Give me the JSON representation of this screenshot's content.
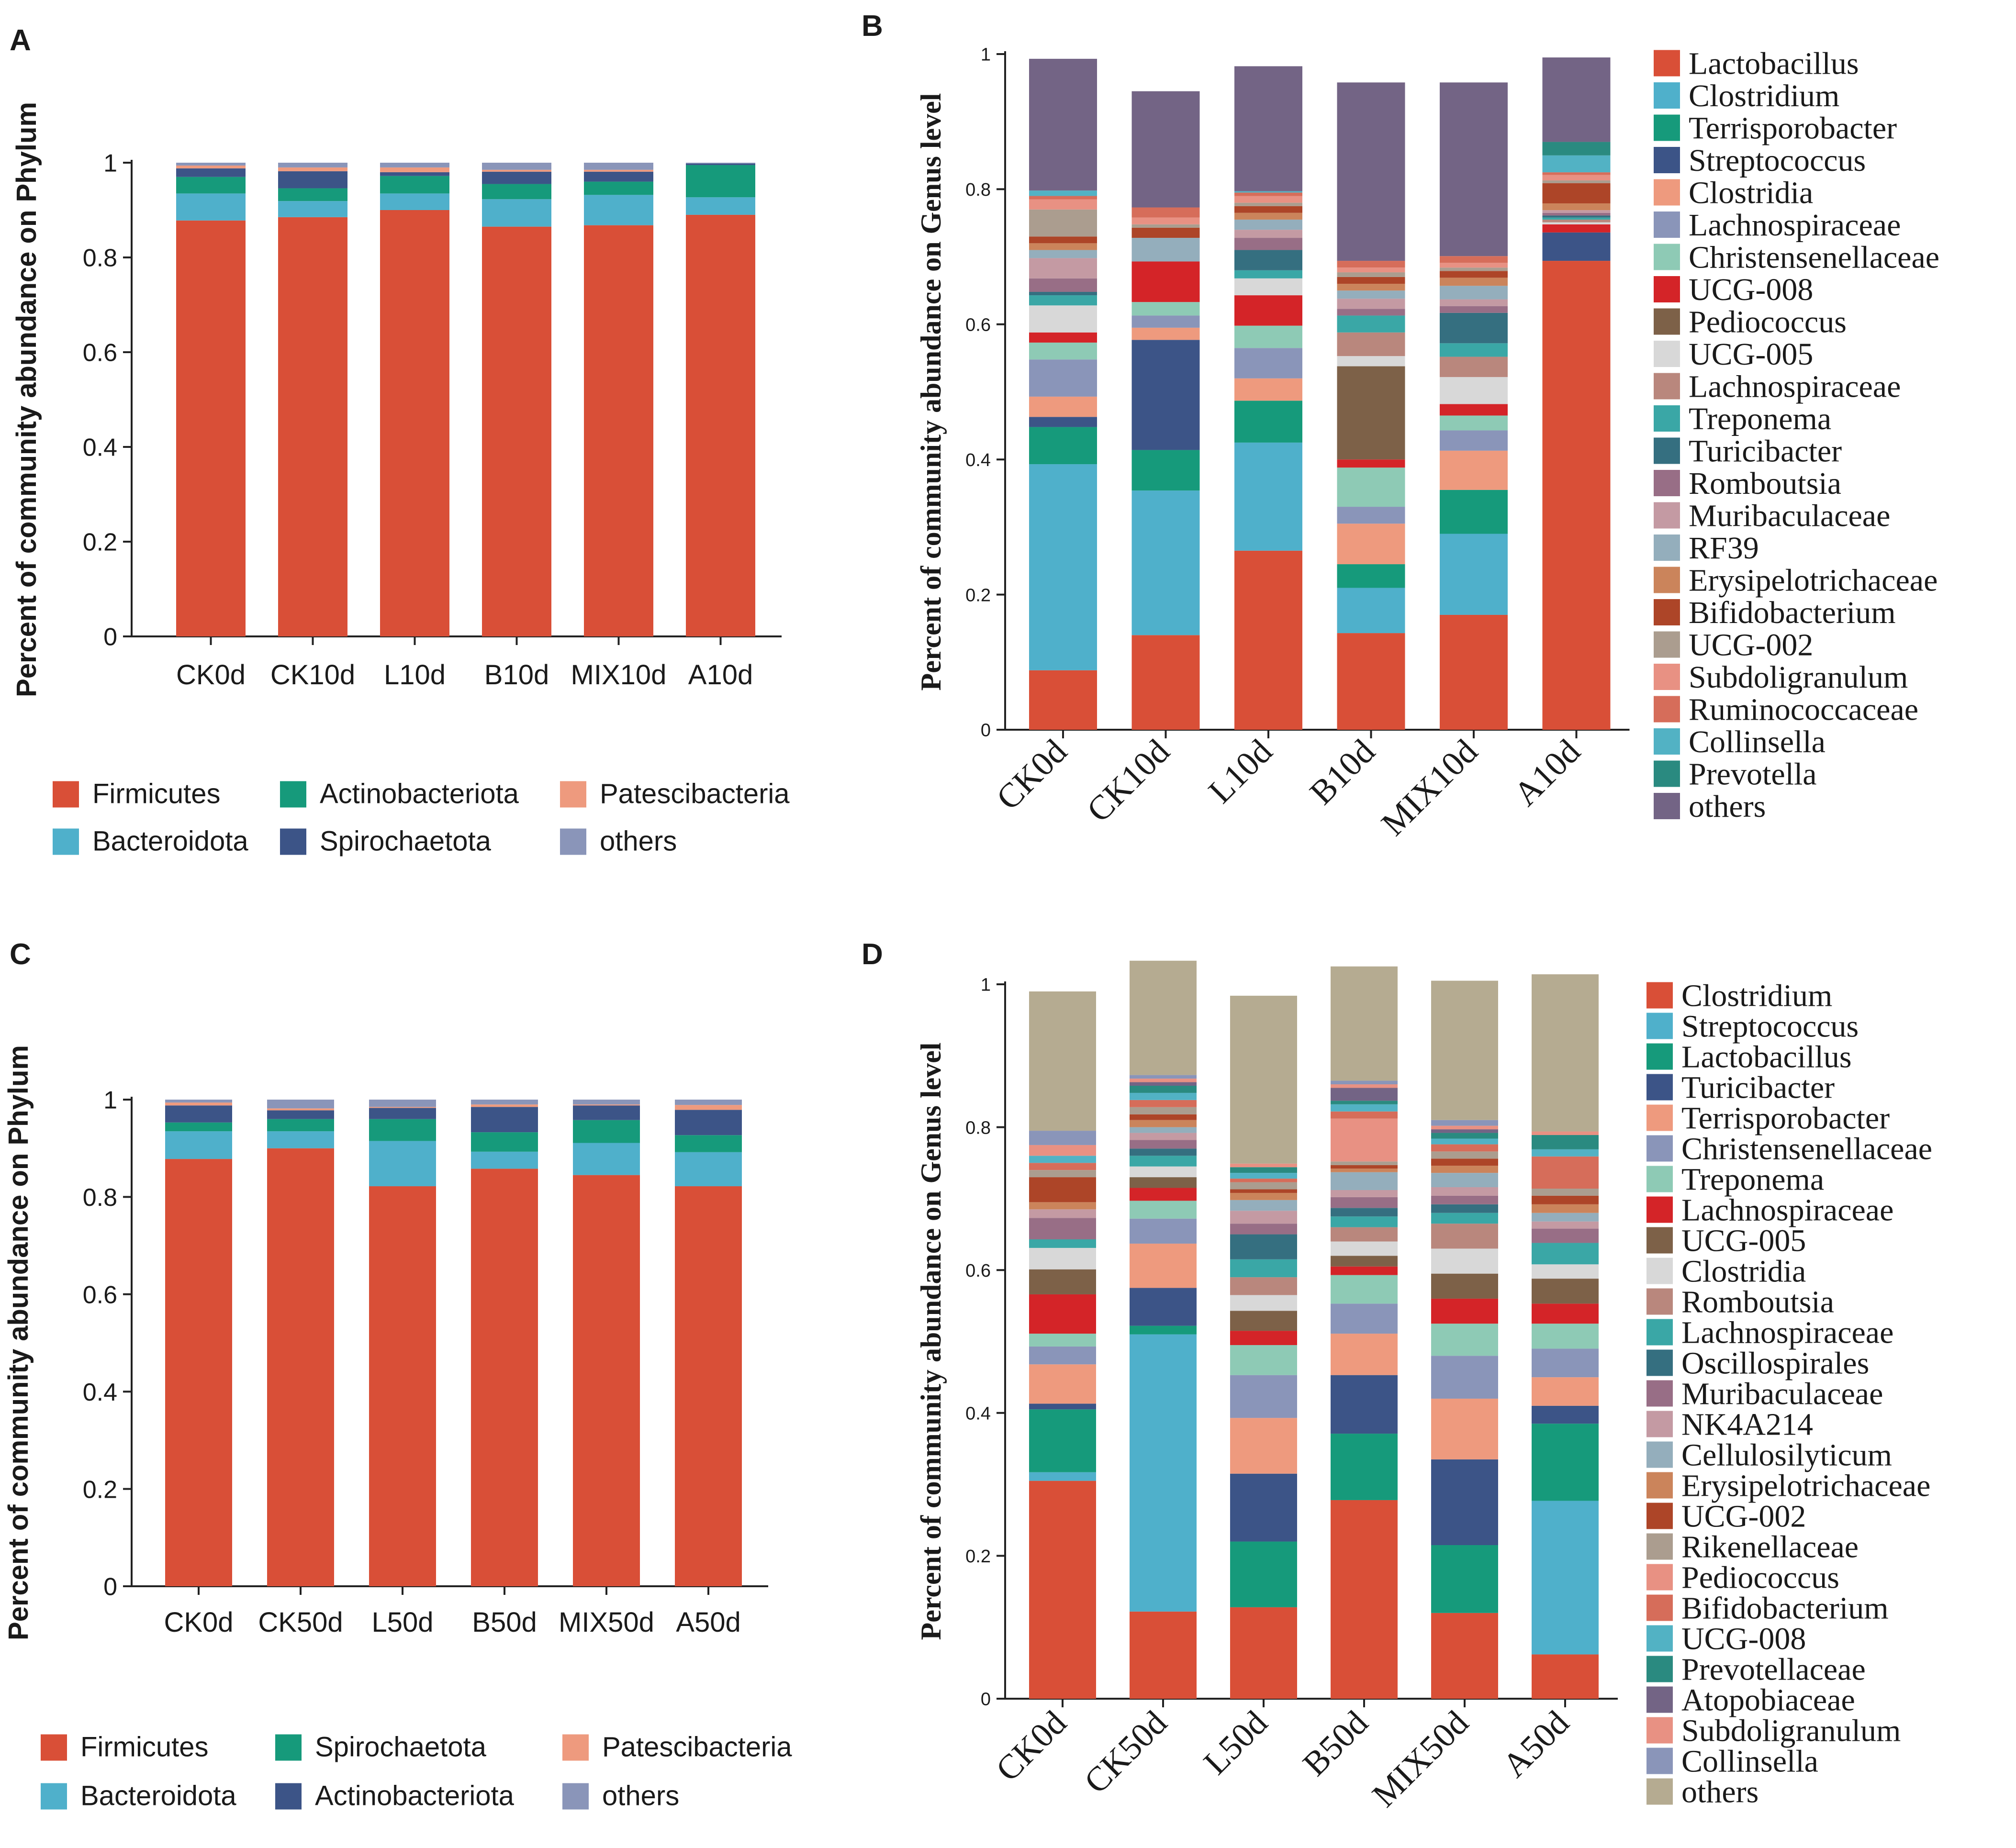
{
  "chart_data": [
    {
      "panel": "A",
      "type": "bar",
      "stacked": true,
      "level": "Phylum",
      "ylabel": "Percent of community abundance on Phylum",
      "xlabel": "",
      "ylim": [
        0,
        1
      ],
      "yticks": [
        "0",
        "0.2",
        "0.4",
        "0.6",
        "0.8",
        "1"
      ],
      "categories": [
        "CK0d",
        "CK10d",
        "L10d",
        "B10d",
        "MIX10d",
        "A10d"
      ],
      "legend_placement": "bottom",
      "series": [
        {
          "name": "Firmicutes",
          "color": "#d94f37",
          "values": [
            0.878,
            0.885,
            0.9,
            0.865,
            0.868,
            0.89
          ]
        },
        {
          "name": "Bacteroidota",
          "color": "#4fb0cb",
          "values": [
            0.057,
            0.034,
            0.035,
            0.058,
            0.064,
            0.037
          ]
        },
        {
          "name": "Actinobacteriota",
          "color": "#169a7b",
          "values": [
            0.035,
            0.027,
            0.037,
            0.032,
            0.028,
            0.068
          ]
        },
        {
          "name": "Spirochaetota",
          "color": "#3c5487",
          "values": [
            0.018,
            0.036,
            0.008,
            0.026,
            0.021,
            0.003
          ]
        },
        {
          "name": "Patescibacteria",
          "color": "#ee9a7e",
          "values": [
            0.006,
            0.008,
            0.01,
            0.004,
            0.004,
            0.0
          ]
        },
        {
          "name": "others",
          "color": "#8a95b9",
          "values": [
            0.006,
            0.01,
            0.01,
            0.015,
            0.015,
            0.002
          ]
        }
      ]
    },
    {
      "panel": "B",
      "type": "bar",
      "stacked": true,
      "level": "Genus",
      "ylabel": "Percent of community abundance on Genus level",
      "xlabel": "",
      "ylim": [
        0,
        1
      ],
      "yticks": [
        "0",
        "0.2",
        "0.4",
        "0.6",
        "0.8",
        "1"
      ],
      "categories": [
        "CK0d",
        "CK10d",
        "L10d",
        "B10d",
        "MIX10d",
        "A10d"
      ],
      "legend_placement": "right",
      "series": [
        {
          "name": "Lactobacillus",
          "color": "#d94f37",
          "values": [
            0.088,
            0.14,
            0.265,
            0.143,
            0.17,
            0.694
          ]
        },
        {
          "name": "Clostridium",
          "color": "#4fb0cb",
          "values": [
            0.305,
            0.214,
            0.16,
            0.067,
            0.12,
            0.0
          ]
        },
        {
          "name": "Terrisporobacter",
          "color": "#169a7b",
          "values": [
            0.055,
            0.06,
            0.062,
            0.035,
            0.065,
            0.0
          ]
        },
        {
          "name": "Streptococcus",
          "color": "#3c5487",
          "values": [
            0.015,
            0.163,
            0.0,
            0.0,
            0.0,
            0.042
          ]
        },
        {
          "name": "Clostridia",
          "color": "#ee9a7e",
          "values": [
            0.03,
            0.018,
            0.033,
            0.06,
            0.058,
            0.0
          ]
        },
        {
          "name": "Lachnospiraceae",
          "color": "#8a95b9",
          "values": [
            0.055,
            0.018,
            0.045,
            0.025,
            0.03,
            0.0
          ]
        },
        {
          "name": "Christensenellaceae",
          "color": "#8ecab5",
          "values": [
            0.025,
            0.02,
            0.033,
            0.058,
            0.022,
            0.0
          ]
        },
        {
          "name": "UCG-008",
          "color": "#d42428",
          "values": [
            0.015,
            0.06,
            0.045,
            0.012,
            0.017,
            0.012
          ]
        },
        {
          "name": "Pediococcus",
          "color": "#7d6148",
          "values": [
            0.0,
            0.0,
            0.0,
            0.138,
            0.0,
            0.0
          ]
        },
        {
          "name": "UCG-005",
          "color": "#d8d8d8",
          "values": [
            0.04,
            0.0,
            0.025,
            0.015,
            0.04,
            0.003
          ]
        },
        {
          "name": "Lachnospiraceae",
          "color": "#b9877d",
          "values": [
            0.0,
            0.0,
            0.0,
            0.035,
            0.03,
            0.004
          ]
        },
        {
          "name": "Treponema",
          "color": "#3aa7a6",
          "values": [
            0.015,
            0.0,
            0.012,
            0.025,
            0.02,
            0.003
          ]
        },
        {
          "name": "Turicibacter",
          "color": "#356f80",
          "values": [
            0.005,
            0.0,
            0.03,
            0.0,
            0.045,
            0.003
          ]
        },
        {
          "name": "Romboutsia",
          "color": "#986e86",
          "values": [
            0.02,
            0.0,
            0.018,
            0.01,
            0.01,
            0.004
          ]
        },
        {
          "name": "Muribaculaceae",
          "color": "#c49aa3",
          "values": [
            0.03,
            0.0,
            0.012,
            0.015,
            0.01,
            0.004
          ]
        },
        {
          "name": "RF39",
          "color": "#94aebc",
          "values": [
            0.012,
            0.035,
            0.015,
            0.012,
            0.02,
            0.0
          ]
        },
        {
          "name": "Erysipelotrichaceae",
          "color": "#cb845b",
          "values": [
            0.01,
            0.0,
            0.01,
            0.01,
            0.012,
            0.01
          ]
        },
        {
          "name": "Bifidobacterium",
          "color": "#ad4528",
          "values": [
            0.01,
            0.015,
            0.01,
            0.01,
            0.01,
            0.03
          ]
        },
        {
          "name": "UCG-002",
          "color": "#ab9d8f",
          "values": [
            0.04,
            0.005,
            0.005,
            0.007,
            0.005,
            0.004
          ]
        },
        {
          "name": "Subdoligranulum",
          "color": "#e89183",
          "values": [
            0.015,
            0.01,
            0.01,
            0.007,
            0.007,
            0.008
          ]
        },
        {
          "name": "Ruminococcaceae",
          "color": "#d66d5a",
          "values": [
            0.005,
            0.015,
            0.005,
            0.01,
            0.01,
            0.004
          ]
        },
        {
          "name": "Collinsella",
          "color": "#52b2c4",
          "values": [
            0.008,
            0.0,
            0.002,
            0.0,
            0.0,
            0.025
          ]
        },
        {
          "name": "Prevotella",
          "color": "#2a8a80",
          "values": [
            0.0,
            0.0,
            0.0,
            0.0,
            0.0,
            0.02
          ]
        },
        {
          "name": "others",
          "color": "#736485",
          "values": [
            0.195,
            0.172,
            0.185,
            0.264,
            0.257,
            0.125
          ]
        }
      ]
    },
    {
      "panel": "C",
      "type": "bar",
      "stacked": true,
      "level": "Phylum",
      "ylabel": "Percent of community abundance on Phylum",
      "xlabel": "",
      "ylim": [
        0,
        1
      ],
      "yticks": [
        "0",
        "0.2",
        "0.4",
        "0.6",
        "0.8",
        "1"
      ],
      "categories": [
        "CK0d",
        "CK50d",
        "L50d",
        "B50d",
        "MIX50d",
        "A50d"
      ],
      "legend_placement": "bottom",
      "series": [
        {
          "name": "Firmicutes",
          "color": "#d94f37",
          "values": [
            0.878,
            0.9,
            0.822,
            0.858,
            0.845,
            0.822
          ]
        },
        {
          "name": "Bacteroidota",
          "color": "#4fb0cb",
          "values": [
            0.057,
            0.035,
            0.093,
            0.035,
            0.066,
            0.07
          ]
        },
        {
          "name": "Spirochaetota",
          "color": "#169a7b",
          "values": [
            0.018,
            0.025,
            0.045,
            0.04,
            0.047,
            0.035
          ]
        },
        {
          "name": "Actinobacteriota",
          "color": "#3c5487",
          "values": [
            0.035,
            0.018,
            0.023,
            0.052,
            0.03,
            0.052
          ]
        },
        {
          "name": "Patescibacteria",
          "color": "#ee9a7e",
          "values": [
            0.006,
            0.004,
            0.002,
            0.005,
            0.002,
            0.01
          ]
        },
        {
          "name": "others",
          "color": "#8a95b9",
          "values": [
            0.006,
            0.018,
            0.015,
            0.01,
            0.01,
            0.011
          ]
        }
      ]
    },
    {
      "panel": "D",
      "type": "bar",
      "stacked": true,
      "level": "Genus",
      "ylabel": "Percent of community abundance on Genus level",
      "xlabel": "",
      "ylim": [
        0,
        1
      ],
      "yticks": [
        "0",
        "0.2",
        "0.4",
        "0.6",
        "0.8",
        "1"
      ],
      "categories": [
        "CK0d",
        "CK50d",
        "L50d",
        "B50d",
        "MIX50d",
        "A50d"
      ],
      "legend_placement": "right",
      "series": [
        {
          "name": "Clostridium",
          "color": "#d94f37",
          "values": [
            0.305,
            0.122,
            0.128,
            0.278,
            0.12,
            0.062
          ]
        },
        {
          "name": "Streptococcus",
          "color": "#4fb0cb",
          "values": [
            0.012,
            0.388,
            0.0,
            0.0,
            0.0,
            0.215
          ]
        },
        {
          "name": "Lactobacillus",
          "color": "#169a7b",
          "values": [
            0.088,
            0.012,
            0.092,
            0.093,
            0.095,
            0.108
          ]
        },
        {
          "name": "Turicibacter",
          "color": "#3c5487",
          "values": [
            0.008,
            0.053,
            0.095,
            0.082,
            0.12,
            0.025
          ]
        },
        {
          "name": "Terrisporobacter",
          "color": "#ee9a7e",
          "values": [
            0.055,
            0.062,
            0.078,
            0.058,
            0.085,
            0.04
          ]
        },
        {
          "name": "Christensenellaceae",
          "color": "#8a95b9",
          "values": [
            0.025,
            0.035,
            0.06,
            0.042,
            0.06,
            0.04
          ]
        },
        {
          "name": "Treponema",
          "color": "#8ecab5",
          "values": [
            0.018,
            0.025,
            0.042,
            0.04,
            0.045,
            0.035
          ]
        },
        {
          "name": "Lachnospiraceae",
          "color": "#d42428",
          "values": [
            0.055,
            0.018,
            0.02,
            0.012,
            0.035,
            0.028
          ]
        },
        {
          "name": "UCG-005",
          "color": "#7d6148",
          "values": [
            0.035,
            0.015,
            0.028,
            0.015,
            0.035,
            0.035
          ]
        },
        {
          "name": "Clostridia",
          "color": "#d8d8d8",
          "values": [
            0.03,
            0.015,
            0.022,
            0.02,
            0.035,
            0.02
          ]
        },
        {
          "name": "Romboutsia",
          "color": "#b9877d",
          "values": [
            0.0,
            0.0,
            0.025,
            0.02,
            0.035,
            0.0
          ]
        },
        {
          "name": "Lachnospiraceae",
          "color": "#3aa7a6",
          "values": [
            0.012,
            0.015,
            0.025,
            0.015,
            0.015,
            0.03
          ]
        },
        {
          "name": "Oscillospirales",
          "color": "#356f80",
          "values": [
            0.0,
            0.01,
            0.035,
            0.012,
            0.012,
            0.0
          ]
        },
        {
          "name": "Muribaculaceae",
          "color": "#986e86",
          "values": [
            0.03,
            0.012,
            0.015,
            0.015,
            0.012,
            0.02
          ]
        },
        {
          "name": "NK4A214",
          "color": "#c49aa3",
          "values": [
            0.012,
            0.01,
            0.018,
            0.01,
            0.012,
            0.01
          ]
        },
        {
          "name": "Cellulosilyticum",
          "color": "#94aebc",
          "values": [
            0.0,
            0.008,
            0.015,
            0.025,
            0.02,
            0.012
          ]
        },
        {
          "name": "Erysipelotrichaceae",
          "color": "#cb845b",
          "values": [
            0.01,
            0.01,
            0.01,
            0.005,
            0.01,
            0.012
          ]
        },
        {
          "name": "UCG-002",
          "color": "#ad4528",
          "values": [
            0.035,
            0.008,
            0.005,
            0.005,
            0.01,
            0.012
          ]
        },
        {
          "name": "Rikenellaceae",
          "color": "#ab9d8f",
          "values": [
            0.01,
            0.01,
            0.01,
            0.005,
            0.01,
            0.01
          ]
        },
        {
          "name": "Pediococcus",
          "color": "#e89183",
          "values": [
            0.0,
            0.0,
            0.0,
            0.06,
            0.0,
            0.0
          ]
        },
        {
          "name": "Bifidobacterium",
          "color": "#d66d5a",
          "values": [
            0.01,
            0.01,
            0.005,
            0.01,
            0.01,
            0.045
          ]
        },
        {
          "name": "UCG-008",
          "color": "#52b2c4",
          "values": [
            0.01,
            0.01,
            0.008,
            0.01,
            0.008,
            0.01
          ]
        },
        {
          "name": "Prevotellaceae",
          "color": "#2a8a80",
          "values": [
            0.0,
            0.01,
            0.008,
            0.005,
            0.008,
            0.02
          ]
        },
        {
          "name": "Atopobiaceae",
          "color": "#736485",
          "values": [
            0.0,
            0.005,
            0.0,
            0.018,
            0.005,
            0.0
          ]
        },
        {
          "name": "Subdoligranulum",
          "color": "#e89183",
          "values": [
            0.015,
            0.005,
            0.005,
            0.005,
            0.005,
            0.005
          ]
        },
        {
          "name": "Collinsella",
          "color": "#8a95b9",
          "values": [
            0.02,
            0.005,
            0.0,
            0.005,
            0.008,
            0.0
          ]
        },
        {
          "name": "others",
          "color": "#b5ab91",
          "values": [
            0.195,
            0.16,
            0.235,
            0.16,
            0.195,
            0.22
          ]
        }
      ]
    }
  ]
}
